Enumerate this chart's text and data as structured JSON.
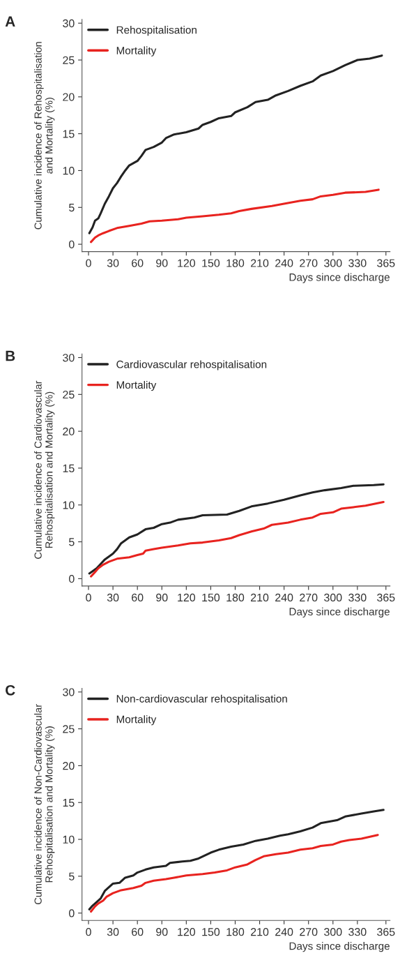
{
  "chart_data": [
    {
      "type": "line",
      "title": "A",
      "xlabel": "Days since discharge",
      "ylabel": "Cumulative incidence of Rehospitalisation\nand Mortality (%)",
      "xlim": [
        -8,
        370
      ],
      "ylim": [
        -1,
        30.5
      ],
      "xticks": [
        0,
        30,
        60,
        90,
        120,
        150,
        180,
        210,
        240,
        270,
        300,
        330,
        365
      ],
      "yticks": [
        0,
        5,
        10,
        15,
        20,
        25,
        30
      ],
      "legend": "top left",
      "grid": false,
      "line_style": "solid",
      "marker": "none",
      "series": [
        {
          "name": "Rehospitalisation",
          "color": "#222222",
          "x": [
            1,
            5,
            8,
            12,
            15,
            20,
            25,
            30,
            35,
            40,
            45,
            50,
            55,
            60,
            65,
            70,
            80,
            90,
            95,
            105,
            120,
            135,
            140,
            150,
            160,
            175,
            180,
            195,
            205,
            220,
            230,
            245,
            260,
            275,
            285,
            300,
            315,
            330,
            345,
            360
          ],
          "values": [
            1.5,
            2.3,
            3.2,
            3.5,
            4.2,
            5.5,
            6.5,
            7.6,
            8.3,
            9.2,
            10.0,
            10.7,
            11.0,
            11.3,
            12.0,
            12.8,
            13.2,
            13.8,
            14.4,
            14.9,
            15.2,
            15.7,
            16.2,
            16.6,
            17.1,
            17.4,
            17.9,
            18.6,
            19.3,
            19.6,
            20.2,
            20.8,
            21.5,
            22.1,
            22.9,
            23.5,
            24.3,
            25.0,
            25.2,
            25.6
          ]
        },
        {
          "name": "Mortality",
          "color": "#e8231f",
          "x": [
            3,
            8,
            12,
            18,
            25,
            35,
            50,
            65,
            75,
            90,
            110,
            120,
            140,
            160,
            175,
            185,
            200,
            225,
            240,
            260,
            275,
            285,
            300,
            315,
            340,
            356
          ],
          "values": [
            0.3,
            0.9,
            1.2,
            1.5,
            1.8,
            2.2,
            2.5,
            2.8,
            3.1,
            3.2,
            3.4,
            3.6,
            3.8,
            4.0,
            4.2,
            4.5,
            4.8,
            5.2,
            5.5,
            5.9,
            6.1,
            6.5,
            6.7,
            7.0,
            7.1,
            7.4
          ]
        }
      ]
    },
    {
      "type": "line",
      "title": "B",
      "xlabel": "Days since discharge",
      "ylabel": "Cumulative incidence of Cardiovascular\nRehospitalisation and Mortality (%)",
      "xlim": [
        -8,
        370
      ],
      "ylim": [
        -1,
        30.5
      ],
      "xticks": [
        0,
        30,
        60,
        90,
        120,
        150,
        180,
        210,
        240,
        270,
        300,
        330,
        365
      ],
      "yticks": [
        0,
        5,
        10,
        15,
        20,
        25,
        30
      ],
      "legend": "top left",
      "grid": false,
      "line_style": "solid",
      "marker": "none",
      "series": [
        {
          "name": "Cardiovascular rehospitalisation",
          "color": "#222222",
          "x": [
            1,
            5,
            10,
            15,
            20,
            25,
            30,
            35,
            40,
            45,
            50,
            60,
            70,
            80,
            90,
            100,
            110,
            130,
            140,
            170,
            185,
            200,
            220,
            240,
            260,
            275,
            290,
            310,
            325,
            350,
            362
          ],
          "values": [
            0.7,
            1.0,
            1.4,
            2.0,
            2.6,
            3.0,
            3.4,
            4.0,
            4.8,
            5.2,
            5.6,
            6.0,
            6.7,
            6.9,
            7.4,
            7.6,
            8.0,
            8.3,
            8.6,
            8.7,
            9.2,
            9.8,
            10.2,
            10.7,
            11.3,
            11.7,
            12.0,
            12.3,
            12.6,
            12.7,
            12.8
          ]
        },
        {
          "name": "Mortality",
          "color": "#e8231f",
          "x": [
            3,
            8,
            12,
            18,
            25,
            35,
            50,
            60,
            67,
            70,
            80,
            90,
            110,
            125,
            140,
            160,
            175,
            185,
            200,
            215,
            225,
            245,
            260,
            275,
            285,
            300,
            310,
            325,
            340,
            362
          ],
          "values": [
            0.3,
            0.9,
            1.4,
            1.9,
            2.3,
            2.7,
            2.9,
            3.2,
            3.4,
            3.8,
            4.0,
            4.2,
            4.5,
            4.8,
            4.9,
            5.2,
            5.5,
            5.9,
            6.4,
            6.8,
            7.3,
            7.6,
            8.0,
            8.3,
            8.8,
            9.0,
            9.5,
            9.7,
            9.9,
            10.4
          ]
        }
      ]
    },
    {
      "type": "line",
      "title": "C",
      "xlabel": "Days since discharge",
      "ylabel": "Cumulative incidence of Non-Cardiovascular\nRehospitalisation and Mortality (%)",
      "xlim": [
        -8,
        370
      ],
      "ylim": [
        -1,
        30.5
      ],
      "xticks": [
        0,
        30,
        60,
        90,
        120,
        150,
        180,
        210,
        240,
        270,
        300,
        330,
        365
      ],
      "yticks": [
        0,
        5,
        10,
        15,
        20,
        25,
        30
      ],
      "legend": "top left",
      "grid": false,
      "line_style": "solid",
      "marker": "none",
      "series": [
        {
          "name": "Non-cardiovascular rehospitalisation",
          "color": "#222222",
          "x": [
            1,
            5,
            10,
            15,
            20,
            25,
            30,
            38,
            45,
            55,
            60,
            70,
            80,
            95,
            100,
            115,
            125,
            135,
            150,
            160,
            175,
            190,
            205,
            220,
            235,
            245,
            260,
            275,
            285,
            305,
            315,
            335,
            350,
            362
          ],
          "values": [
            0.5,
            1.0,
            1.5,
            2.0,
            3.0,
            3.5,
            4.0,
            4.1,
            4.8,
            5.1,
            5.5,
            5.9,
            6.2,
            6.4,
            6.8,
            7.0,
            7.1,
            7.4,
            8.2,
            8.6,
            9.0,
            9.3,
            9.8,
            10.1,
            10.5,
            10.7,
            11.1,
            11.6,
            12.2,
            12.6,
            13.1,
            13.5,
            13.8,
            14.0
          ]
        },
        {
          "name": "Mortality",
          "color": "#e8231f",
          "x": [
            3,
            8,
            12,
            18,
            22,
            30,
            40,
            55,
            65,
            70,
            80,
            95,
            105,
            120,
            140,
            155,
            170,
            180,
            195,
            205,
            215,
            230,
            245,
            260,
            275,
            285,
            300,
            310,
            320,
            335,
            355
          ],
          "values": [
            0.2,
            0.9,
            1.3,
            1.7,
            2.2,
            2.7,
            3.1,
            3.4,
            3.7,
            4.1,
            4.4,
            4.6,
            4.8,
            5.1,
            5.3,
            5.5,
            5.8,
            6.2,
            6.6,
            7.2,
            7.7,
            8.0,
            8.2,
            8.6,
            8.8,
            9.1,
            9.3,
            9.7,
            9.9,
            10.1,
            10.6
          ]
        }
      ]
    }
  ]
}
